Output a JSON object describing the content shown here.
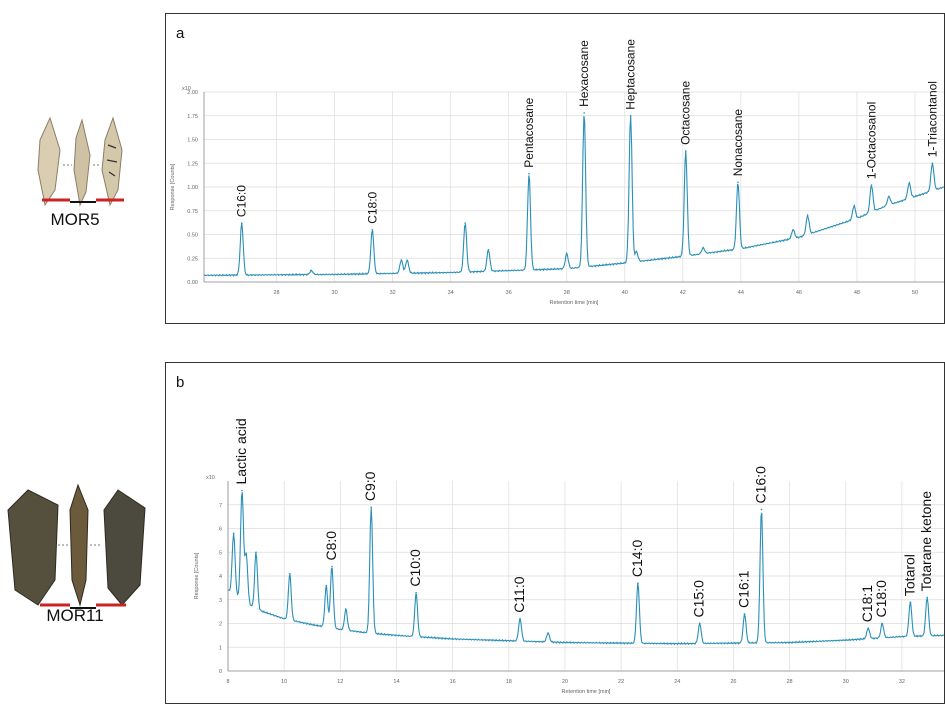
{
  "specimens": [
    {
      "label": "MOR5"
    },
    {
      "label": "MOR11"
    }
  ],
  "colors": {
    "trace": "#2a8fb8",
    "grid": "#dddddd",
    "axis": "#888888",
    "scale_red": "#cc2222",
    "scale_black": "#111111"
  },
  "chart_data": [
    {
      "type": "line",
      "panel_letter": "a",
      "xlabel": "Retention time [min]",
      "ylabel": "Response [Counts]",
      "y_multiplier": "x10",
      "xlim": [
        25.5,
        51
      ],
      "ylim": [
        0,
        2
      ],
      "x_ticks": [
        28,
        30,
        32,
        34,
        36,
        38,
        40,
        42,
        44,
        46,
        48,
        50
      ],
      "y_ticks": [
        "0.00",
        "0.25",
        "0.50",
        "0.75",
        "1.00",
        "1.25",
        "1.50",
        "1.75",
        "2.00"
      ],
      "baseline": [
        [
          25.5,
          0.07
        ],
        [
          30,
          0.08
        ],
        [
          34,
          0.1
        ],
        [
          38,
          0.14
        ],
        [
          40,
          0.2
        ],
        [
          42,
          0.27
        ],
        [
          44,
          0.35
        ],
        [
          46,
          0.47
        ],
        [
          48,
          0.67
        ],
        [
          49,
          0.8
        ],
        [
          50,
          0.9
        ],
        [
          51,
          1.0
        ]
      ],
      "peaks": [
        {
          "x": 26.8,
          "y": 0.62,
          "label": "C16:0"
        },
        {
          "x": 29.2,
          "y": 0.12,
          "label": ""
        },
        {
          "x": 31.3,
          "y": 0.55,
          "label": "C18:0"
        },
        {
          "x": 32.3,
          "y": 0.23,
          "label": ""
        },
        {
          "x": 32.5,
          "y": 0.23,
          "label": ""
        },
        {
          "x": 34.5,
          "y": 0.62,
          "label": ""
        },
        {
          "x": 35.3,
          "y": 0.34,
          "label": ""
        },
        {
          "x": 36.7,
          "y": 1.14,
          "label": "Pentacosane"
        },
        {
          "x": 38.0,
          "y": 0.3,
          "label": ""
        },
        {
          "x": 38.6,
          "y": 1.78,
          "label": "Hexacosane"
        },
        {
          "x": 40.2,
          "y": 1.75,
          "label": "Heptacosane"
        },
        {
          "x": 40.4,
          "y": 0.32,
          "label": ""
        },
        {
          "x": 42.1,
          "y": 1.38,
          "label": "Octacosane"
        },
        {
          "x": 42.7,
          "y": 0.36,
          "label": ""
        },
        {
          "x": 43.9,
          "y": 1.05,
          "label": "Nonacosane"
        },
        {
          "x": 45.8,
          "y": 0.55,
          "label": ""
        },
        {
          "x": 46.3,
          "y": 0.7,
          "label": ""
        },
        {
          "x": 47.9,
          "y": 0.8,
          "label": ""
        },
        {
          "x": 48.5,
          "y": 1.02,
          "label": "1-Octacosanol"
        },
        {
          "x": 49.1,
          "y": 0.9,
          "label": ""
        },
        {
          "x": 49.8,
          "y": 1.04,
          "label": ""
        },
        {
          "x": 50.6,
          "y": 1.25,
          "label": "1-Triacontanol"
        }
      ]
    },
    {
      "type": "line",
      "panel_letter": "b",
      "xlabel": "Retention time [min]",
      "ylabel": "Response [Counts]",
      "y_multiplier": "x10",
      "xlim": [
        8,
        33.5
      ],
      "ylim": [
        0,
        8
      ],
      "x_ticks": [
        8,
        10,
        12,
        14,
        16,
        18,
        20,
        22,
        24,
        26,
        28,
        30,
        32
      ],
      "y_ticks": [
        "0",
        "1",
        "2",
        "3",
        "4",
        "5",
        "6",
        "7"
      ],
      "baseline": [
        [
          8,
          3.4
        ],
        [
          8.5,
          3.0
        ],
        [
          9,
          2.6
        ],
        [
          10,
          2.2
        ],
        [
          11,
          1.95
        ],
        [
          12,
          1.75
        ],
        [
          13,
          1.6
        ],
        [
          14,
          1.5
        ],
        [
          16,
          1.35
        ],
        [
          20,
          1.2
        ],
        [
          24,
          1.15
        ],
        [
          28,
          1.2
        ],
        [
          30,
          1.3
        ],
        [
          32,
          1.45
        ],
        [
          33.5,
          1.5
        ]
      ],
      "peaks": [
        {
          "x": 8.2,
          "y": 5.8,
          "label": ""
        },
        {
          "x": 8.5,
          "y": 7.6,
          "label": "Lactic acid"
        },
        {
          "x": 8.65,
          "y": 4.9,
          "label": ""
        },
        {
          "x": 9.0,
          "y": 5.0,
          "label": ""
        },
        {
          "x": 10.2,
          "y": 4.1,
          "label": ""
        },
        {
          "x": 11.5,
          "y": 3.6,
          "label": ""
        },
        {
          "x": 11.7,
          "y": 4.4,
          "label": "C8:0"
        },
        {
          "x": 12.2,
          "y": 2.6,
          "label": ""
        },
        {
          "x": 13.1,
          "y": 6.9,
          "label": "C9:0"
        },
        {
          "x": 14.7,
          "y": 3.3,
          "label": "C10:0"
        },
        {
          "x": 18.4,
          "y": 2.2,
          "label": "C11:0"
        },
        {
          "x": 19.4,
          "y": 1.6,
          "label": ""
        },
        {
          "x": 22.6,
          "y": 3.7,
          "label": "C14:0"
        },
        {
          "x": 24.8,
          "y": 2.0,
          "label": "C15:0"
        },
        {
          "x": 26.4,
          "y": 2.4,
          "label": "C16:1"
        },
        {
          "x": 27.0,
          "y": 6.8,
          "label": "C16:0"
        },
        {
          "x": 30.8,
          "y": 1.8,
          "label": "C18:1"
        },
        {
          "x": 31.3,
          "y": 2.0,
          "label": "C18:0"
        },
        {
          "x": 32.3,
          "y": 2.9,
          "label": "Totarol"
        },
        {
          "x": 32.9,
          "y": 3.1,
          "label": "Totarane ketone"
        }
      ]
    }
  ]
}
